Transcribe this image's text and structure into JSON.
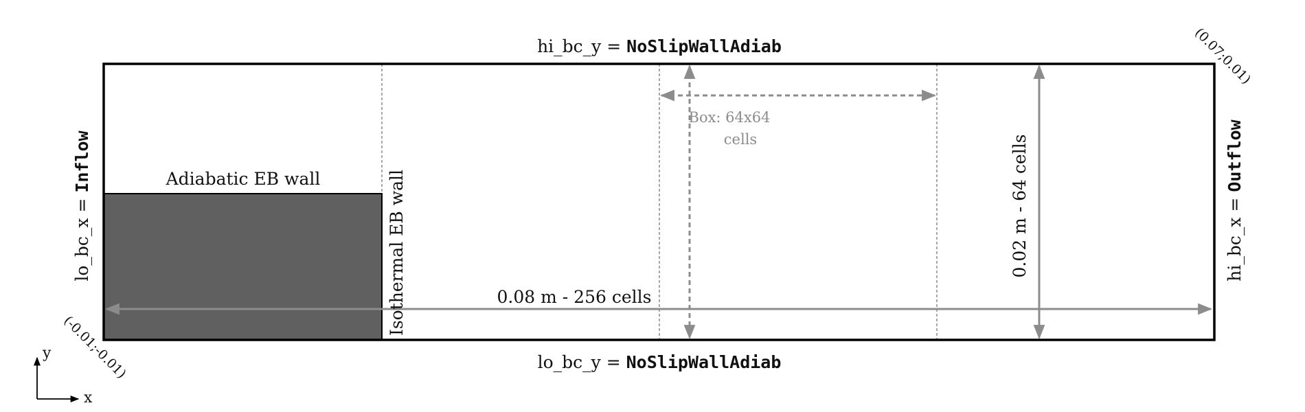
{
  "colors": {
    "domain_border": "#000000",
    "eb_block_fill": "#606060",
    "annotation_gray": "#8c8c8c",
    "text": "#111111"
  },
  "boundaries": {
    "top": {
      "prefix": "hi_bc_y = ",
      "value": "NoSlipWallAdiab"
    },
    "bottom": {
      "prefix": "lo_bc_y = ",
      "value": "NoSlipWallAdiab"
    },
    "left": {
      "prefix": "lo_bc_x = ",
      "value": "Inflow"
    },
    "right": {
      "prefix": "hi_bc_x = ",
      "value": "Outflow"
    }
  },
  "corners": {
    "lower_left": "(-0.01;-0.01)",
    "upper_right": "(0.07;0.01)"
  },
  "walls": {
    "adiabatic": "Adiabatic EB wall",
    "isothermal": "Isothermal EB wall"
  },
  "dimensions": {
    "length": "0.08 m - 256 cells",
    "height": "0.02 m - 64 cells"
  },
  "box": {
    "line1": "Box: 64x64",
    "line2": "cells"
  },
  "axes": {
    "x": "x",
    "y": "y"
  }
}
